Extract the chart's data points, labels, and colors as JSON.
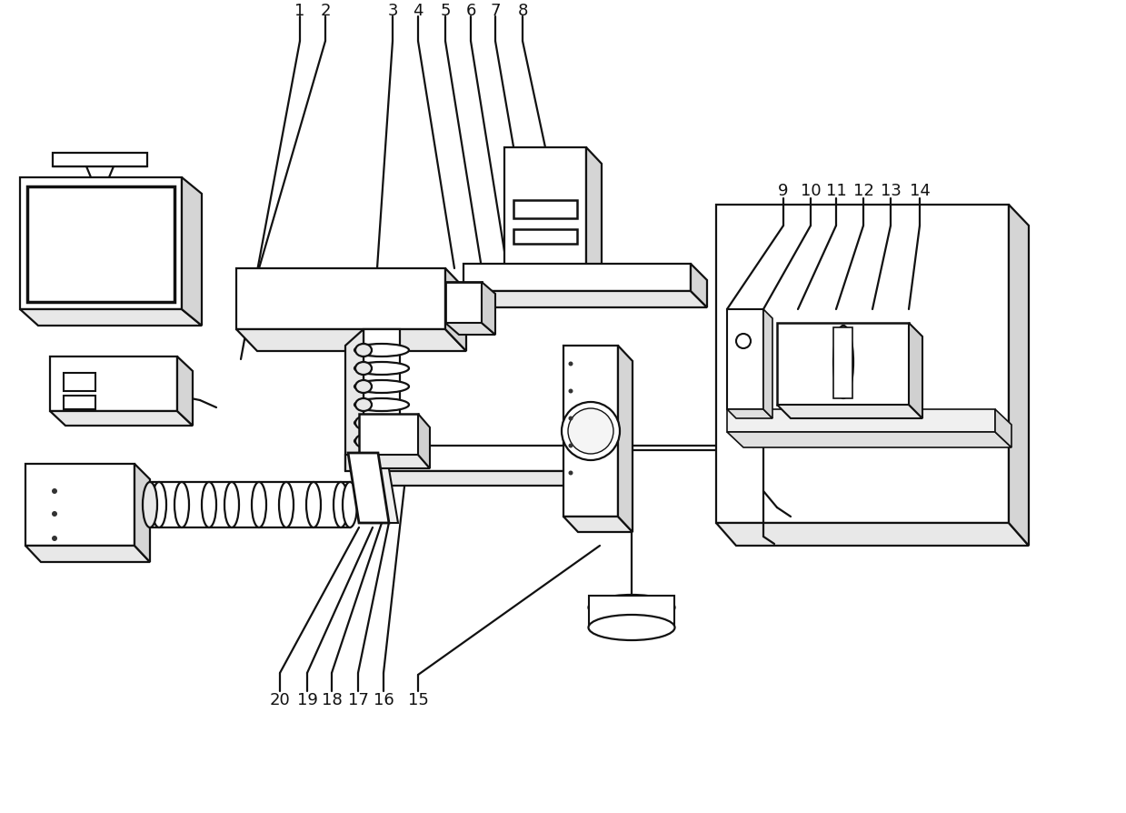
{
  "figsize": [
    12.39,
    8.94
  ],
  "dpi": 100,
  "bg": "#ffffff",
  "lc": "#111111",
  "lw": 1.6,
  "label_fs": 13
}
